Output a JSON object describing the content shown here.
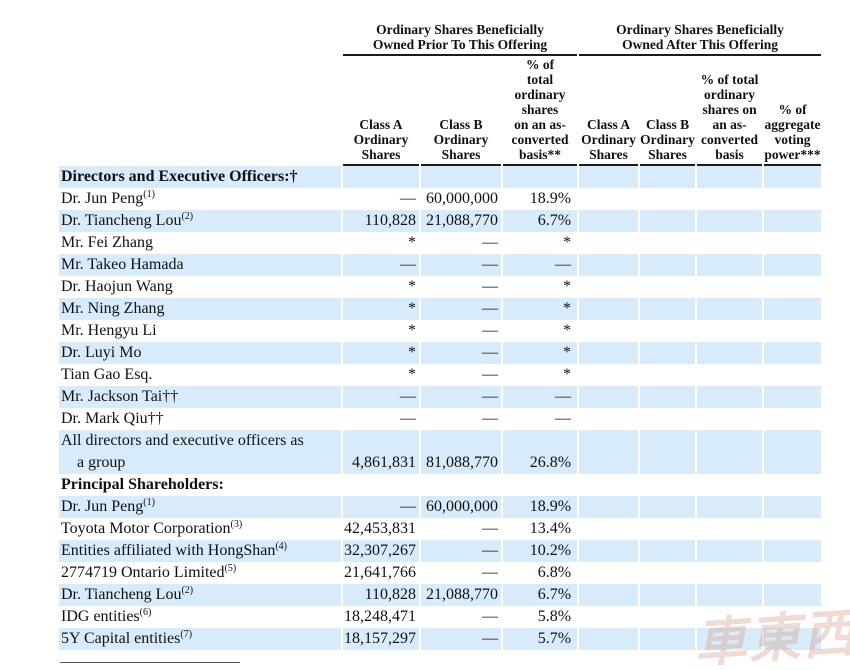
{
  "colors": {
    "stripe": "#d8ebfa",
    "rule": "#1c1c1c",
    "watermark": "#d6a08c"
  },
  "watermark": {
    "text": "車東西"
  },
  "table": {
    "group_headers": [
      "Ordinary Shares Beneficially\nOwned Prior To This Offering",
      "Ordinary Shares Beneficially\nOwned After This Offering"
    ],
    "column_headers": [
      "Class A\nOrdinary\nShares",
      "Class B\nOrdinary\nShares",
      "% of\ntotal\nordinary\nshares\non an as-\nconverted\nbasis**",
      "Class A\nOrdinary\nShares",
      "Class B\nOrdinary\nShares",
      "% of total\nordinary\nshares on\nan as-\nconverted\nbasis",
      "% of\naggregate\nvoting\npower***"
    ],
    "rows": [
      {
        "label": "Directors and Executive Officers:†",
        "bold": true,
        "values": [
          "",
          "",
          "",
          "",
          "",
          "",
          ""
        ]
      },
      {
        "label": "Dr. Jun Peng",
        "sup": "(1)",
        "values": [
          "—",
          "60,000,000",
          "18.9%",
          "",
          "",
          "",
          ""
        ]
      },
      {
        "label": "Dr. Tiancheng Lou",
        "sup": "(2)",
        "values": [
          "110,828",
          "21,088,770",
          "6.7%",
          "",
          "",
          "",
          ""
        ]
      },
      {
        "label": "Mr. Fei Zhang",
        "values": [
          "*",
          "—",
          "*",
          "",
          "",
          "",
          ""
        ]
      },
      {
        "label": "Mr. Takeo Hamada",
        "values": [
          "—",
          "—",
          "—",
          "",
          "",
          "",
          ""
        ]
      },
      {
        "label": "Dr. Haojun Wang",
        "values": [
          "*",
          "—",
          "*",
          "",
          "",
          "",
          ""
        ]
      },
      {
        "label": "Mr. Ning Zhang",
        "values": [
          "*",
          "—",
          "*",
          "",
          "",
          "",
          ""
        ]
      },
      {
        "label": "Mr. Hengyu Li",
        "values": [
          "*",
          "—",
          "*",
          "",
          "",
          "",
          ""
        ]
      },
      {
        "label": "Dr. Luyi Mo",
        "values": [
          "*",
          "—",
          "*",
          "",
          "",
          "",
          ""
        ]
      },
      {
        "label": "Tian Gao Esq.",
        "values": [
          "*",
          "—",
          "*",
          "",
          "",
          "",
          ""
        ]
      },
      {
        "label": "Mr. Jackson Tai††",
        "values": [
          "—",
          "—",
          "—",
          "",
          "",
          "",
          ""
        ]
      },
      {
        "label": "Dr. Mark Qiu††",
        "values": [
          "—",
          "—",
          "—",
          "",
          "",
          "",
          ""
        ]
      },
      {
        "label": "All directors and executive officers as",
        "label_line2": "a group",
        "values": [
          "4,861,831",
          "81,088,770",
          "26.8%",
          "",
          "",
          "",
          ""
        ]
      },
      {
        "label": "Principal Shareholders:",
        "bold": true,
        "values": [
          "",
          "",
          "",
          "",
          "",
          "",
          ""
        ]
      },
      {
        "label": "Dr. Jun Peng",
        "sup": "(1)",
        "values": [
          "—",
          "60,000,000",
          "18.9%",
          "",
          "",
          "",
          ""
        ]
      },
      {
        "label": "Toyota Motor Corporation",
        "sup": "(3)",
        "values": [
          "42,453,831",
          "—",
          "13.4%",
          "",
          "",
          "",
          ""
        ]
      },
      {
        "label": "Entities affiliated with HongShan",
        "sup": "(4)",
        "values": [
          "32,307,267",
          "—",
          "10.2%",
          "",
          "",
          "",
          ""
        ]
      },
      {
        "label": "2774719 Ontario Limited",
        "sup": "(5)",
        "values": [
          "21,641,766",
          "—",
          "6.8%",
          "",
          "",
          "",
          ""
        ]
      },
      {
        "label": "Dr. Tiancheng Lou",
        "sup": "(2)",
        "values": [
          "110,828",
          "21,088,770",
          "6.7%",
          "",
          "",
          "",
          ""
        ]
      },
      {
        "label": "IDG entities",
        "sup": "(6)",
        "values": [
          "18,248,471",
          "—",
          "5.8%",
          "",
          "",
          "",
          ""
        ]
      },
      {
        "label": "5Y Capital entities",
        "sup": "(7)",
        "values": [
          "18,157,297",
          "—",
          "5.7%",
          "",
          "",
          "",
          ""
        ]
      }
    ]
  }
}
